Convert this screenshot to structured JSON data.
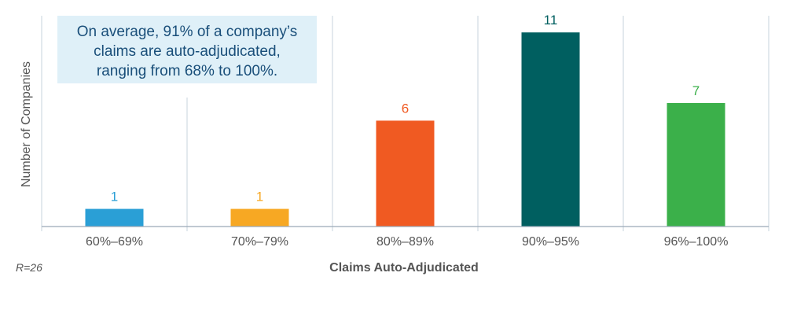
{
  "chart_data": {
    "type": "bar",
    "categories": [
      "60%–69%",
      "70%–79%",
      "80%–89%",
      "90%–95%",
      "96%–100%"
    ],
    "values": [
      1,
      1,
      6,
      11,
      7
    ],
    "colors": [
      "#2a9fd6",
      "#f7a823",
      "#f05a22",
      "#005f60",
      "#3bb04a"
    ],
    "label_colors": [
      "#2a9fd6",
      "#f7a823",
      "#f05a22",
      "#005f60",
      "#3bb04a"
    ],
    "xlabel": "Claims Auto-Adjudicated",
    "ylabel": "Number of Companies",
    "ylim": [
      0,
      11.5
    ],
    "grid": "vertical separators",
    "callout": {
      "lines": [
        "On average, 91% of a company’s",
        "claims are auto-adjudicated,",
        "ranging from 68% to 100%."
      ],
      "background": "#dff0f8"
    },
    "note": "R=26"
  }
}
